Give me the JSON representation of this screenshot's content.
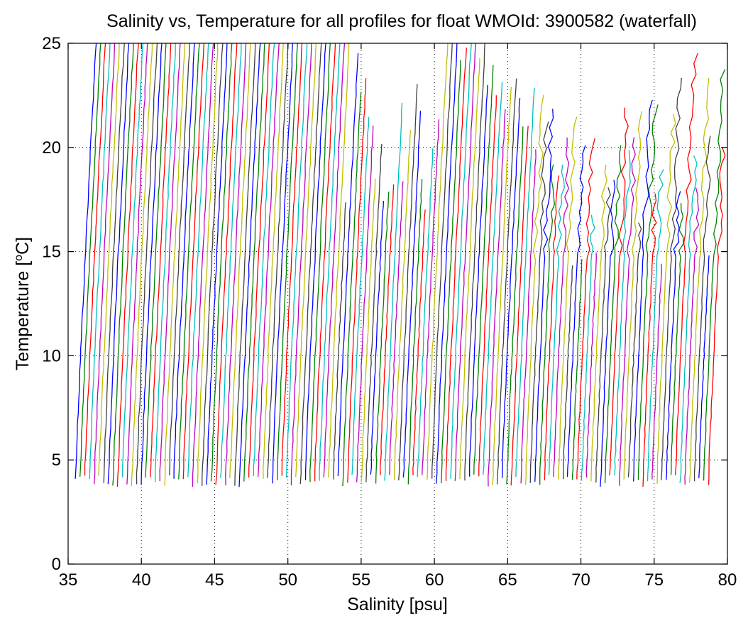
{
  "chart_data": {
    "type": "line",
    "title": "Salinity vs, Temperature for all profiles for float WMOId: 3900582 (waterfall)",
    "xlabel": "Salinity [psu]",
    "ylabel_main": "Temperature [",
    "ylabel_sup": "o",
    "ylabel_end": "C]",
    "xlim": [
      35,
      80
    ],
    "ylim": [
      0,
      25
    ],
    "xticks": [
      "35",
      "40",
      "45",
      "50",
      "55",
      "60",
      "65",
      "70",
      "75",
      "80"
    ],
    "yticks": [
      "0",
      "5",
      "10",
      "15",
      "20",
      "25"
    ],
    "grid": true,
    "waterfall": {
      "profile_count": 136,
      "first_bottom_salinity": 35.5,
      "offset_per_profile_psu": 0.32,
      "top_lean_psu": 1.4,
      "bottom_temperature_range": [
        3.7,
        4.3
      ],
      "top_temperature_range": [
        14,
        25
      ]
    },
    "palette": [
      "#0000ff",
      "#008000",
      "#ff0000",
      "#00bfbf",
      "#bf00bf",
      "#bfbf00",
      "#404040"
    ]
  }
}
